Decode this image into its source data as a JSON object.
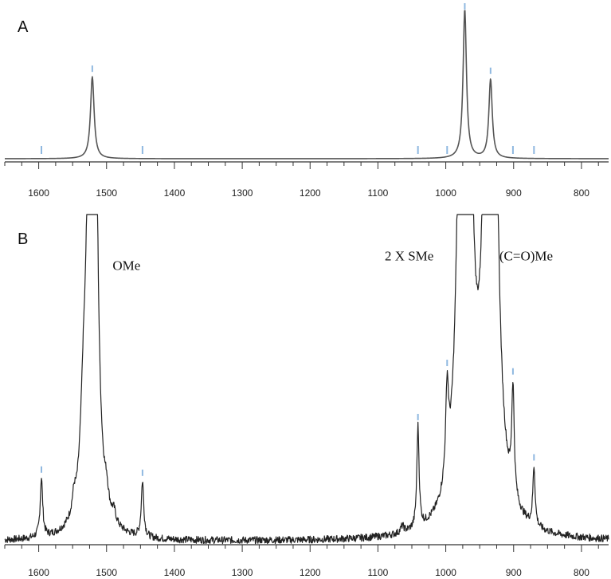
{
  "chart_data": [
    {
      "type": "line",
      "panel_label": "A",
      "xlim": [
        1650,
        760
      ],
      "x_ticks": [
        1600,
        1500,
        1400,
        1300,
        1200,
        1100,
        1000,
        900,
        800
      ],
      "ylim": [
        0,
        1.0
      ],
      "trace_color": "#555555",
      "peaks": [
        {
          "x": 1521,
          "height": 0.55,
          "width": 3.2
        },
        {
          "x": 972,
          "height": 1.0,
          "width": 3.0
        },
        {
          "x": 934,
          "height": 0.53,
          "width": 3.0
        }
      ],
      "markers": [
        1596,
        1521,
        1447,
        1041,
        998,
        972,
        934,
        901,
        870
      ],
      "annotations": []
    },
    {
      "type": "line",
      "panel_label": "B",
      "xlim": [
        1650,
        760
      ],
      "x_ticks": [
        1600,
        1500,
        1400,
        1300,
        1200,
        1100,
        1000,
        900,
        800
      ],
      "ylim": [
        0,
        1.0
      ],
      "trace_color": "#222222",
      "peaks": [
        {
          "x": 1596,
          "height": 0.18,
          "width": 2.2
        },
        {
          "x": 1521,
          "height": 6.0,
          "width": 3.5
        },
        {
          "x": 1534,
          "height": 0.25,
          "width": 5.0
        },
        {
          "x": 1548,
          "height": 0.05,
          "width": 3.0
        },
        {
          "x": 1500,
          "height": 0.05,
          "width": 3.0
        },
        {
          "x": 1489,
          "height": 0.03,
          "width": 3.0
        },
        {
          "x": 1447,
          "height": 0.17,
          "width": 2.2
        },
        {
          "x": 1064,
          "height": 0.02,
          "width": 3.0
        },
        {
          "x": 1041,
          "height": 0.31,
          "width": 2.0
        },
        {
          "x": 998,
          "height": 0.27,
          "width": 2.5
        },
        {
          "x": 972,
          "height": 6.0,
          "width": 5.0
        },
        {
          "x": 934,
          "height": 5.0,
          "width": 5.5
        },
        {
          "x": 901,
          "height": 0.33,
          "width": 2.2
        },
        {
          "x": 870,
          "height": 0.18,
          "width": 2.0
        }
      ],
      "markers": [
        1596,
        1447,
        1041,
        998,
        901,
        870
      ],
      "annotations": [
        {
          "text": "OMe",
          "x": 1491,
          "y": 0.83
        },
        {
          "text": "2 X SMe",
          "x": 1090,
          "y": 0.86
        },
        {
          "text": "(C=O)Me",
          "x": 921,
          "y": 0.86
        }
      ]
    }
  ]
}
